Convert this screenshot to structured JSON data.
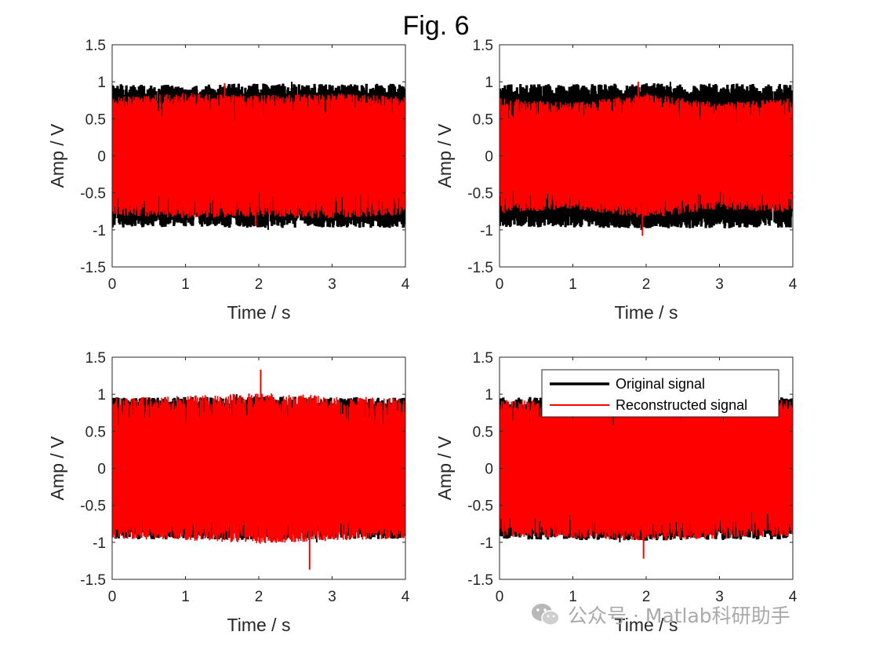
{
  "figure": {
    "title": "Fig. 6",
    "watermark": "公众号 · Matlab科研助手",
    "watermark_icon": "wechat-icon"
  },
  "chart_data": [
    {
      "type": "line",
      "xlabel": "Time / s",
      "ylabel": "Amp / V",
      "xlim": [
        0,
        4
      ],
      "ylim": [
        -1.5,
        1.5
      ],
      "xticks": [
        "0",
        "1",
        "2",
        "3",
        "4"
      ],
      "yticks": [
        "1.5",
        "1",
        "0.5",
        "0",
        "-0.5",
        "-1",
        "-1.5"
      ],
      "series": [
        {
          "color": "#000000",
          "envelope": [
            0.97,
            0.96,
            0.98,
            0.97,
            0.98
          ],
          "peak_y": 1.0,
          "min_y": -1.0
        },
        {
          "color": "#ff0000",
          "envelope": [
            0.8,
            0.85,
            0.82,
            0.85,
            0.8
          ],
          "peak_y": 0.98,
          "min_y": -0.95
        }
      ],
      "legend": null
    },
    {
      "type": "line",
      "xlabel": "Time / s",
      "ylabel": "Amp / V",
      "xlim": [
        0,
        4
      ],
      "ylim": [
        -1.5,
        1.5
      ],
      "xticks": [
        "0",
        "1",
        "2",
        "3",
        "4"
      ],
      "yticks": [
        "1.5",
        "1",
        "0.5",
        "0",
        "-0.5",
        "-1",
        "-1.5"
      ],
      "series": [
        {
          "color": "#000000",
          "envelope": [
            0.97,
            0.97,
            0.98,
            0.98,
            0.97
          ],
          "peak_y": 1.0,
          "min_y": -1.0
        },
        {
          "color": "#ff0000",
          "envelope": [
            0.78,
            0.72,
            0.85,
            0.72,
            0.78
          ],
          "peak_y": 1.0,
          "min_y": -1.08
        }
      ],
      "legend": null
    },
    {
      "type": "line",
      "xlabel": "Time / s",
      "ylabel": "Amp / V",
      "xlim": [
        0,
        4
      ],
      "ylim": [
        -1.5,
        1.5
      ],
      "xticks": [
        "0",
        "1",
        "2",
        "3",
        "4"
      ],
      "yticks": [
        "1.5",
        "1",
        "0.5",
        "0",
        "-0.5",
        "-1",
        "-1.5"
      ],
      "series": [
        {
          "color": "#000000",
          "envelope": [
            0.96,
            0.96,
            0.97,
            0.96,
            0.96
          ],
          "peak_y": 1.0,
          "min_y": -1.0
        },
        {
          "color": "#ff0000",
          "envelope": [
            0.95,
            0.98,
            1.02,
            0.98,
            0.95
          ],
          "peak_y": 1.33,
          "min_y": -1.37
        }
      ],
      "legend": null
    },
    {
      "type": "line",
      "xlabel": "Time / s",
      "ylabel": "Amp / V",
      "xlim": [
        0,
        4
      ],
      "ylim": [
        -1.5,
        1.5
      ],
      "xticks": [
        "0",
        "1",
        "2",
        "3",
        "4"
      ],
      "yticks": [
        "1.5",
        "1",
        "0.5",
        "0",
        "-0.5",
        "-1",
        "-1.5"
      ],
      "series": [
        {
          "name": "Original signal",
          "color": "#000000",
          "envelope": [
            0.96,
            0.97,
            0.98,
            0.97,
            0.96
          ],
          "peak_y": 1.0,
          "min_y": -1.0
        },
        {
          "name": "Reconstructed signal",
          "color": "#ff0000",
          "envelope": [
            0.92,
            0.95,
            0.98,
            0.95,
            0.92
          ],
          "peak_y": 1.13,
          "min_y": -1.22
        }
      ],
      "legend": {
        "position": "top-right",
        "entries": [
          "Original signal",
          "Reconstructed signal"
        ]
      }
    }
  ]
}
